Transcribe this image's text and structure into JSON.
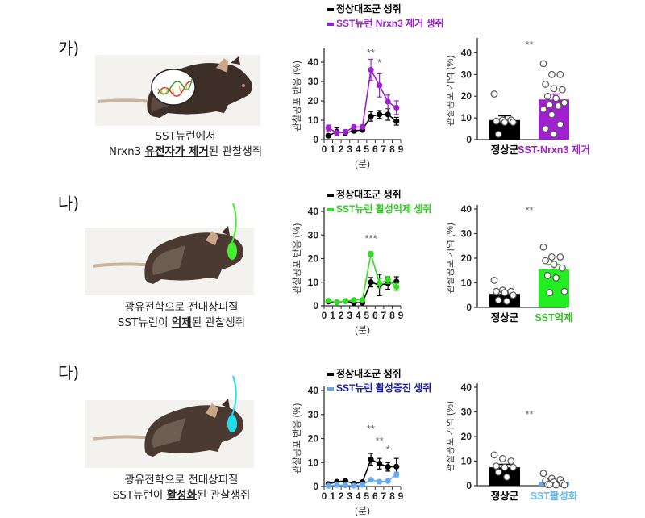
{
  "panels": [
    {
      "label": "가)",
      "caption_line1": "SST뉴런에서",
      "caption_line2_pre": "Nrxn3 ",
      "caption_line2_emph": "유전자가 제거",
      "caption_line2_post": "된 관찰생쥐",
      "mouse_marker": "dna-window",
      "accent": "#a020d0"
    },
    {
      "label": "나)",
      "caption_line1": "광유전학으로 전대상피질",
      "caption_line2_pre": "SST뉴런이 ",
      "caption_line2_emph": "억제",
      "caption_line2_post": "된 관찰생쥐",
      "mouse_marker": "optic-fiber",
      "accent": "#33dd22"
    },
    {
      "label": "다)",
      "caption_line1": "광유전학으로 전대상피질",
      "caption_line2_pre": "SST뉴런이 ",
      "caption_line2_emph": "활성화",
      "caption_line2_post": "된 관찰생쥐",
      "mouse_marker": "optic-fiber",
      "accent": "#22ddee"
    }
  ],
  "chart_data": [
    {
      "id": "line-a",
      "type": "line",
      "title": "",
      "xlabel": "(분)",
      "ylabel": "관찰공포 반응 (%)",
      "x": [
        0.5,
        1.5,
        2.5,
        3.5,
        4.5,
        5.5,
        6.5,
        7.5,
        8.5
      ],
      "xticks": [
        "0",
        "1",
        "2",
        "3",
        "4",
        "5",
        "6",
        "7",
        "8",
        "9"
      ],
      "xlim": [
        0,
        9
      ],
      "ylim": [
        0,
        45
      ],
      "yticks": [
        0,
        10,
        20,
        30,
        40
      ],
      "legend_position": "top",
      "series": [
        {
          "name": "정상대조군 생쥐",
          "color": "#000000",
          "legend_text_color": "#000000",
          "values": [
            2,
            4,
            3.5,
            4.5,
            5,
            12,
            13,
            13,
            9.5
          ],
          "errors": [
            0.8,
            2,
            1.5,
            1,
            1,
            2.5,
            2,
            3,
            2
          ]
        },
        {
          "name": "SST뉴런 Nrxn3 제거 생쥐",
          "color": "#a020d0",
          "legend_text_color": "#a020d0",
          "values": [
            6,
            3.5,
            4,
            6.5,
            6.5,
            36,
            28,
            19.5,
            16.5
          ],
          "errors": [
            1.5,
            1,
            1,
            1,
            1,
            5.5,
            6,
            3.5,
            3.5
          ]
        }
      ],
      "annotations": [
        {
          "x": 5.5,
          "text": "**",
          "y": 43
        },
        {
          "x": 6.5,
          "text": "*",
          "y": 38
        }
      ]
    },
    {
      "id": "bar-a",
      "type": "bar",
      "ylabel": "관찰공포 기억 (%)",
      "ylim": [
        0,
        45
      ],
      "yticks": [
        0,
        10,
        20,
        30,
        40
      ],
      "categories": [
        "정상군",
        "SST-Nrxn3 제거"
      ],
      "category_colors": [
        "#000000",
        "#a020d0"
      ],
      "label_colors": [
        "#000000",
        "#a020d0"
      ],
      "values": [
        9,
        18.5
      ],
      "errors": [
        2,
        2.5
      ],
      "points": [
        [
          21,
          9,
          9,
          8.5,
          8,
          8,
          2.5
        ],
        [
          35,
          30,
          30,
          25.5,
          23.5,
          23,
          20,
          19,
          17,
          16,
          15.5,
          14,
          11.5,
          7,
          5,
          2.5
        ]
      ],
      "annotations": [
        {
          "text": "**",
          "y": 42
        }
      ]
    },
    {
      "id": "line-b",
      "type": "line",
      "xlabel": "(분)",
      "ylabel": "관찰공포 반응 (%)",
      "x": [
        0.5,
        1.5,
        2.5,
        3.5,
        4.5,
        5.5,
        6.5,
        7.5,
        8.5
      ],
      "xticks": [
        "0",
        "1",
        "2",
        "3",
        "4",
        "5",
        "6",
        "7",
        "8",
        "9"
      ],
      "xlim": [
        0,
        9
      ],
      "ylim": [
        0,
        40
      ],
      "yticks": [
        0,
        10,
        20,
        30,
        40
      ],
      "legend_position": "top",
      "series": [
        {
          "name": "정상대조군 생쥐",
          "color": "#000000",
          "legend_text_color": "#000000",
          "values": [
            1.8,
            1.5,
            2,
            1.3,
            1.3,
            10,
            8.8,
            9.5,
            10.3
          ],
          "errors": [
            0.5,
            0.4,
            0.4,
            1.2,
            0.5,
            2,
            4.5,
            2.5,
            2
          ]
        },
        {
          "name": "SST뉴런 활성억제 생쥐",
          "color": "#33dd22",
          "legend_text_color": "#33cc22",
          "values": [
            2.2,
            1.5,
            2,
            2.5,
            2.5,
            22,
            9.5,
            11,
            8
          ],
          "errors": [
            0.5,
            0.4,
            0.4,
            0.5,
            0.5,
            1,
            2,
            1.5,
            1.5
          ]
        }
      ],
      "annotations": [
        {
          "x": 5.5,
          "text": "***",
          "y": 27
        }
      ]
    },
    {
      "id": "bar-b",
      "type": "bar",
      "ylabel": "관찰공포 기억 (%)",
      "ylim": [
        0,
        40
      ],
      "yticks": [
        0,
        10,
        20,
        30,
        40
      ],
      "categories": [
        "정상군",
        "SST억제"
      ],
      "category_colors": [
        "#000000",
        "#22ee22"
      ],
      "label_colors": [
        "#000000",
        "#33bb22"
      ],
      "values": [
        5.5,
        15.5
      ],
      "errors": [
        1,
        2
      ],
      "points": [
        [
          11,
          7,
          6.5,
          6.5,
          6,
          5,
          3,
          2.5
        ],
        [
          24.5,
          20.5,
          20.5,
          19,
          17.5,
          16,
          13,
          12,
          6.5,
          6
        ]
      ],
      "annotations": [
        {
          "text": "**",
          "y": 38
        }
      ]
    },
    {
      "id": "line-c",
      "type": "line",
      "xlabel": "(분)",
      "ylabel": "관찰공포 반응 (%)",
      "x": [
        0.5,
        1.5,
        2.5,
        3.5,
        4.5,
        5.5,
        6.5,
        7.5,
        8.5
      ],
      "xticks": [
        "0",
        "1",
        "2",
        "3",
        "4",
        "5",
        "6",
        "7",
        "8",
        "9"
      ],
      "xlim": [
        0,
        9
      ],
      "ylim": [
        0,
        40
      ],
      "yticks": [
        0,
        10,
        20,
        30,
        40
      ],
      "legend_position": "top",
      "series": [
        {
          "name": "정상대조군 생쥐",
          "color": "#000000",
          "legend_text_color": "#000000",
          "values": [
            1,
            2,
            2.3,
            1.2,
            1.8,
            11.3,
            9.5,
            8.2,
            8.3
          ],
          "errors": [
            0.4,
            0.5,
            0.5,
            0.4,
            0.5,
            2.5,
            2.2,
            1.8,
            3.4
          ]
        },
        {
          "name": "SST뉴런 활성증진 생쥐",
          "color": "#66aaee",
          "legend_text_color": "#1a1aaa",
          "values": [
            0.3,
            0.6,
            0.5,
            0.3,
            0.7,
            2.8,
            2,
            2.3,
            5
          ],
          "errors": [
            0.3,
            0.3,
            0.3,
            0.3,
            0.3,
            0.5,
            0.5,
            0.5,
            1
          ]
        }
      ],
      "annotations": [
        {
          "x": 5.5,
          "text": "**",
          "y": 22.5
        },
        {
          "x": 6.5,
          "text": "**",
          "y": 17.5
        },
        {
          "x": 7.5,
          "text": "*",
          "y": 14
        }
      ]
    },
    {
      "id": "bar-c",
      "type": "bar",
      "ylabel": "관찰공포 기억 (%)",
      "ylim": [
        0,
        40
      ],
      "yticks": [
        0,
        10,
        20,
        30,
        40
      ],
      "categories": [
        "정상군",
        "SST활성화"
      ],
      "category_colors": [
        "#000000",
        "#66aaee"
      ],
      "label_colors": [
        "#000000",
        "#66bbee"
      ],
      "values": [
        7.5,
        1.5
      ],
      "errors": [
        1.2,
        0.5
      ],
      "points": [
        [
          12.5,
          11,
          10,
          8,
          7.5,
          7.5,
          5.5,
          3.5
        ],
        [
          5,
          3,
          2.5,
          2,
          1.5,
          1,
          0.5,
          0.3,
          0.3,
          0.5
        ]
      ],
      "annotations": [
        {
          "text": "**",
          "y": 27.5
        }
      ]
    }
  ]
}
